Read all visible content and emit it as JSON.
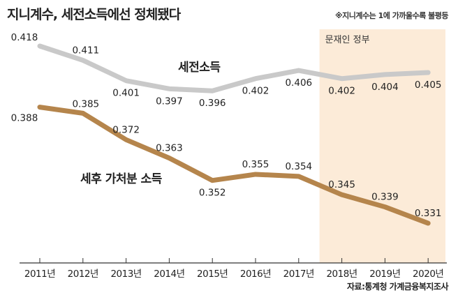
{
  "title": "지니계수, 세전소득에선 정체됐다",
  "note": "※지니계수는 1에 가까울수록 불평등",
  "source": "자료:통계청 가계금융복지조사",
  "chart_data": {
    "type": "line",
    "categories": [
      "2011년",
      "2012년",
      "2013년",
      "2014년",
      "2015년",
      "2016년",
      "2017년",
      "2018년",
      "2019년",
      "2020년"
    ],
    "series": [
      {
        "name": "세전소득",
        "values": [
          0.418,
          0.411,
          0.401,
          0.397,
          0.396,
          0.402,
          0.406,
          0.402,
          0.404,
          0.405
        ],
        "color": "#c9c9c9"
      },
      {
        "name": "세후 가처분 소득",
        "values": [
          0.388,
          0.385,
          0.372,
          0.363,
          0.352,
          0.355,
          0.354,
          0.345,
          0.339,
          0.331
        ],
        "color": "#b5854c"
      }
    ],
    "annotations": [
      {
        "text": "문재인 정부",
        "range": [
          "2018년",
          "2020년"
        ],
        "color": "#fcebd8"
      }
    ],
    "grid": false
  }
}
